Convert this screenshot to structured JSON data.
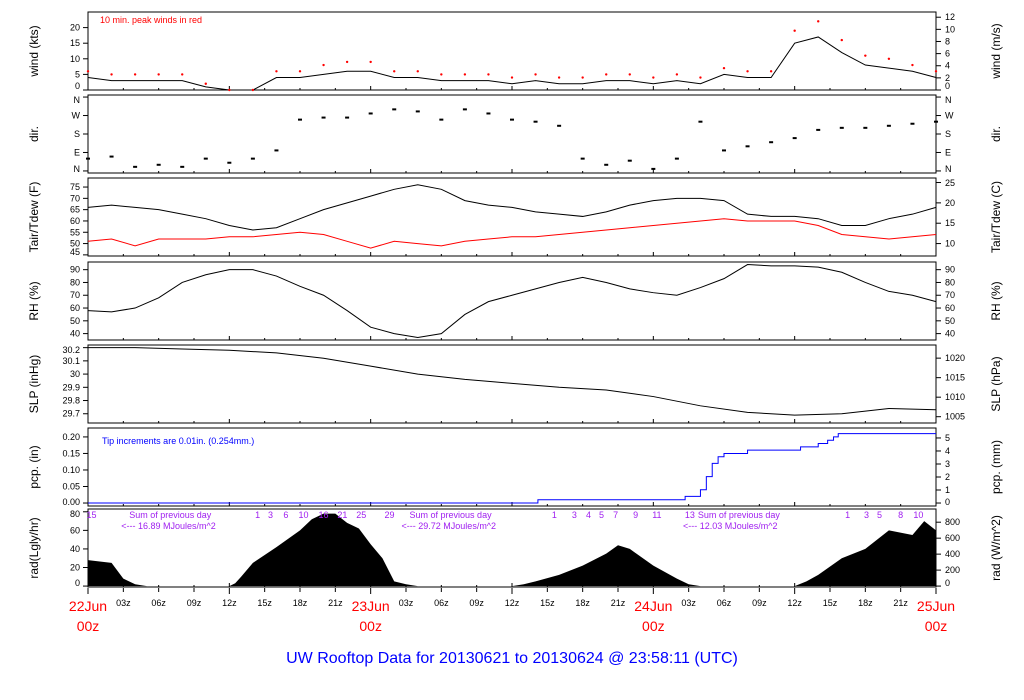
{
  "title": "UW Rooftop Data for 20130621  to  20130624 @ 23:58:11  (UTC)",
  "colors": {
    "main": "#000000",
    "peak": "#ff0000",
    "dew": "#ff0000",
    "pcp": "#0000ff",
    "annot": "#a020f0",
    "day": "#ff0000",
    "title": "#0000ff"
  },
  "chart_data": [
    {
      "type": "line",
      "id": "wind",
      "ylabel": "wind (kts)",
      "ylabel_right": "wind (m/s)",
      "ylim": [
        0,
        25
      ],
      "yticks": [
        0,
        5,
        10,
        15,
        20
      ],
      "right_ticks": [
        0,
        2,
        4,
        6,
        8,
        10,
        12
      ],
      "annotation": "10 min. peak winds in red",
      "x_hours": [
        0,
        2,
        4,
        6,
        8,
        10,
        12,
        14,
        16,
        18,
        20,
        22,
        24,
        26,
        28,
        30,
        32,
        34,
        36,
        38,
        40,
        42,
        44,
        46,
        48,
        50,
        52,
        54,
        56,
        58,
        60,
        62,
        64,
        66,
        68,
        70,
        72
      ],
      "series": [
        {
          "name": "wind",
          "values": [
            4,
            3,
            3,
            3,
            3,
            1,
            0,
            0,
            4,
            4,
            5,
            6,
            6,
            4,
            4,
            3,
            3,
            3,
            2,
            3,
            2,
            2,
            3,
            3,
            2,
            3,
            2,
            5,
            4,
            4,
            15,
            17,
            12,
            8,
            7,
            6,
            4
          ]
        },
        {
          "name": "10 min. peak winds",
          "values": [
            6,
            5,
            5,
            5,
            5,
            2,
            0,
            0,
            6,
            6,
            8,
            9,
            9,
            6,
            6,
            5,
            5,
            5,
            4,
            5,
            4,
            4,
            5,
            5,
            4,
            5,
            4,
            7,
            6,
            6,
            19,
            22,
            16,
            11,
            10,
            8,
            6
          ]
        }
      ]
    },
    {
      "type": "scatter",
      "id": "dir",
      "ylabel": "dir.",
      "ylabel_right": "dir.",
      "ylim": [
        -10,
        370
      ],
      "yticks": [
        0,
        90,
        180,
        270,
        360
      ],
      "ytick_labels": [
        "N",
        "E",
        "S",
        "W",
        "N"
      ],
      "x_hours": [
        0,
        2,
        4,
        6,
        8,
        10,
        12,
        14,
        16,
        18,
        20,
        22,
        24,
        26,
        28,
        30,
        32,
        34,
        36,
        38,
        40,
        42,
        44,
        46,
        48,
        50,
        52,
        54,
        56,
        58,
        60,
        62,
        64,
        66,
        68,
        70,
        72
      ],
      "values": [
        60,
        70,
        20,
        30,
        20,
        60,
        40,
        60,
        100,
        250,
        260,
        260,
        280,
        300,
        290,
        250,
        300,
        280,
        250,
        240,
        220,
        60,
        30,
        50,
        10,
        60,
        240,
        100,
        120,
        140,
        160,
        200,
        210,
        210,
        220,
        230,
        240
      ]
    },
    {
      "type": "line",
      "id": "temp",
      "ylabel": "Tair/Tdew (F)",
      "ylabel_right": "Tair/Tdew (C)",
      "ylim": [
        44.5,
        79
      ],
      "yticks": [
        45,
        50,
        55,
        60,
        65,
        70,
        75
      ],
      "right_ticks": [
        10,
        15,
        20,
        25
      ],
      "x_hours": [
        0,
        2,
        4,
        6,
        8,
        10,
        12,
        14,
        16,
        18,
        20,
        22,
        24,
        26,
        28,
        30,
        32,
        34,
        36,
        38,
        40,
        42,
        44,
        46,
        48,
        50,
        52,
        54,
        56,
        58,
        60,
        62,
        64,
        66,
        68,
        70,
        72
      ],
      "series": [
        {
          "name": "Tair",
          "values": [
            66,
            67,
            66,
            65,
            63,
            61,
            58,
            56,
            57,
            61,
            65,
            68,
            71,
            74,
            76,
            74,
            69,
            67,
            66,
            64,
            63,
            62,
            64,
            67,
            69,
            70,
            70,
            69,
            63,
            62,
            62,
            61,
            58,
            58,
            61,
            63,
            66
          ]
        },
        {
          "name": "Tdew",
          "values": [
            51,
            52,
            49,
            52,
            52,
            52,
            53,
            53,
            54,
            55,
            54,
            51,
            48,
            51,
            50,
            49,
            51,
            52,
            53,
            53,
            54,
            55,
            56,
            57,
            58,
            59,
            60,
            61,
            60,
            60,
            60,
            58,
            54,
            53,
            52,
            53,
            54
          ]
        }
      ]
    },
    {
      "type": "line",
      "id": "rh",
      "ylabel": "RH (%)",
      "ylabel_right": "RH (%)",
      "ylim": [
        35,
        96
      ],
      "yticks": [
        40,
        50,
        60,
        70,
        80,
        90
      ],
      "right_ticks": [
        40,
        50,
        60,
        70,
        80,
        90
      ],
      "x_hours": [
        0,
        2,
        4,
        6,
        8,
        10,
        12,
        14,
        16,
        18,
        20,
        22,
        24,
        26,
        28,
        30,
        32,
        34,
        36,
        38,
        40,
        42,
        44,
        46,
        48,
        50,
        52,
        54,
        56,
        58,
        60,
        62,
        64,
        66,
        68,
        70,
        72
      ],
      "values": [
        58,
        57,
        60,
        68,
        80,
        86,
        90,
        90,
        85,
        77,
        70,
        58,
        45,
        40,
        37,
        40,
        55,
        65,
        70,
        75,
        80,
        84,
        80,
        75,
        72,
        70,
        76,
        83,
        94,
        93,
        93,
        92,
        88,
        80,
        73,
        70,
        65
      ]
    },
    {
      "type": "line",
      "id": "slp",
      "ylabel": "SLP (inHg)",
      "ylabel_right": "SLP (hPa)",
      "ylim": [
        29.63,
        30.22
      ],
      "yticks": [
        29.7,
        29.8,
        29.9,
        30.0,
        30.1,
        30.2
      ],
      "right_ticks": [
        1005,
        1010,
        1015,
        1020
      ],
      "x_hours": [
        0,
        4,
        8,
        12,
        16,
        20,
        24,
        28,
        32,
        36,
        40,
        44,
        48,
        52,
        56,
        60,
        64,
        68,
        72
      ],
      "values": [
        30.2,
        30.2,
        30.19,
        30.18,
        30.16,
        30.12,
        30.06,
        30.0,
        29.96,
        29.93,
        29.9,
        29.88,
        29.83,
        29.76,
        29.71,
        29.69,
        29.7,
        29.74,
        29.73
      ]
    },
    {
      "type": "step",
      "id": "pcp",
      "ylabel": "pcp. (in)",
      "ylabel_right": "pcp. (mm)",
      "ylim": [
        -0.009,
        0.227
      ],
      "yticks": [
        0,
        0.05,
        0.1,
        0.15,
        0.2
      ],
      "ytick_labels": [
        "0.00",
        "0.05",
        "0.10",
        "0.15",
        "0.20"
      ],
      "right_ticks": [
        0,
        1,
        2,
        3,
        4,
        5
      ],
      "annotation": "Tip increments are 0.01in. (0.254mm.)",
      "x_hours": [
        0,
        38.2,
        50.7,
        52,
        52.5,
        53,
        53.5,
        54,
        56,
        60.5,
        62,
        62.8,
        63.3,
        63.7,
        72
      ],
      "values": [
        0,
        0.01,
        0.02,
        0.04,
        0.08,
        0.12,
        0.14,
        0.15,
        0.16,
        0.17,
        0.18,
        0.19,
        0.2,
        0.21,
        0.21
      ]
    },
    {
      "type": "area",
      "id": "rad",
      "ylabel": "rad(Lgly/hr)",
      "ylabel_right": "rad (W/m^2)",
      "ylim": [
        -1,
        83
      ],
      "yticks": [
        0,
        20,
        40,
        60,
        80
      ],
      "right_ticks": [
        0,
        200,
        400,
        600,
        800
      ],
      "x_hours": [
        0,
        2,
        3,
        4,
        5,
        12,
        12.5,
        13,
        14,
        16,
        18,
        19,
        20,
        21,
        22,
        23,
        24,
        25,
        26,
        27,
        28,
        36,
        37,
        38,
        40,
        42,
        44,
        45,
        46,
        48,
        50,
        51,
        52,
        60,
        61,
        62,
        64,
        66,
        68,
        70,
        71,
        72
      ],
      "values": [
        28,
        25,
        8,
        2,
        0,
        0,
        3,
        10,
        25,
        42,
        60,
        72,
        78,
        78,
        68,
        62,
        45,
        30,
        5,
        2,
        0,
        0,
        2,
        5,
        12,
        22,
        35,
        44,
        40,
        22,
        8,
        2,
        0,
        0,
        5,
        12,
        30,
        40,
        60,
        55,
        70,
        60
      ],
      "hour_counts": [
        {
          "h": 0.3,
          "label": "15"
        },
        {
          "h": 14.4,
          "label": "1"
        },
        {
          "h": 15.5,
          "label": "3"
        },
        {
          "h": 16.8,
          "label": "6"
        },
        {
          "h": 18.3,
          "label": "10"
        },
        {
          "h": 20,
          "label": "16"
        },
        {
          "h": 21.6,
          "label": "21"
        },
        {
          "h": 23.2,
          "label": "25"
        },
        {
          "h": 25.6,
          "label": "29"
        },
        {
          "h": 39.6,
          "label": "1"
        },
        {
          "h": 41.3,
          "label": "3"
        },
        {
          "h": 42.5,
          "label": "4"
        },
        {
          "h": 43.6,
          "label": "5"
        },
        {
          "h": 44.8,
          "label": "7"
        },
        {
          "h": 46.5,
          "label": "9"
        },
        {
          "h": 48.3,
          "label": "11"
        },
        {
          "h": 51.1,
          "label": "13"
        },
        {
          "h": 64.5,
          "label": "1"
        },
        {
          "h": 66.1,
          "label": "3"
        },
        {
          "h": 67.2,
          "label": "5"
        },
        {
          "h": 69,
          "label": "8"
        },
        {
          "h": 70.5,
          "label": "10"
        }
      ],
      "daily_sums": [
        {
          "h": 3.5,
          "line1": "Sum of previous day",
          "line2": "<--- 16.89 MJoules/m^2"
        },
        {
          "h": 27.3,
          "line1": "Sum of previous day",
          "line2": "<--- 29.72 MJoules/m^2"
        },
        {
          "h": 51.2,
          "line1": "Sum of previous day",
          "line2": "<--- 12.03 MJoules/m^2"
        }
      ]
    }
  ],
  "x_axis": {
    "range_hours": [
      0,
      72
    ],
    "hour_labels": [
      "03z",
      "06z",
      "09z",
      "12z",
      "15z",
      "18z",
      "21z"
    ],
    "days": [
      {
        "h": 0,
        "date": "22Jun",
        "time": "00z"
      },
      {
        "h": 24,
        "date": "23Jun",
        "time": "00z"
      },
      {
        "h": 48,
        "date": "24Jun",
        "time": "00z"
      },
      {
        "h": 72,
        "date": "25Jun",
        "time": "00z"
      }
    ]
  }
}
